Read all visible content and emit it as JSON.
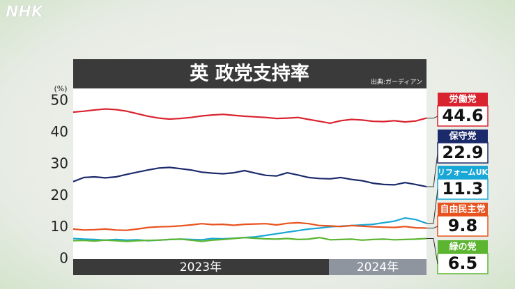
{
  "logo": "NHK",
  "chart_data": {
    "type": "line",
    "title": "英 政党支持率",
    "source": "出典:ガーディアン",
    "y_label": "(%)",
    "period_labels": [
      "2023年",
      "2024年"
    ],
    "ylim": [
      0,
      54
    ],
    "yticks": [
      0,
      10,
      20,
      30,
      40,
      50
    ],
    "grid": false,
    "series": [
      {
        "name": "労働党",
        "color": "#d9232e",
        "values": [
          46.5,
          46.8,
          47.2,
          47.5,
          47.3,
          46.8,
          46.0,
          45.2,
          44.6,
          44.3,
          44.5,
          44.8,
          45.3,
          45.6,
          45.8,
          45.5,
          45.2,
          45.0,
          44.8,
          44.5,
          44.6,
          44.8,
          44.2,
          43.6,
          43.0,
          43.8,
          44.2,
          44.0,
          43.6,
          43.5,
          43.8,
          43.4,
          43.7,
          44.6
        ]
      },
      {
        "name": "保守党",
        "color": "#1b2a6b",
        "values": [
          24.5,
          25.8,
          26.0,
          25.7,
          26.0,
          26.8,
          27.5,
          28.2,
          28.8,
          29.0,
          28.6,
          28.2,
          27.5,
          27.2,
          27.0,
          27.3,
          28.0,
          27.2,
          26.5,
          26.3,
          27.3,
          26.6,
          25.8,
          25.5,
          25.4,
          25.8,
          25.2,
          24.8,
          24.0,
          23.6,
          23.5,
          24.2,
          23.6,
          22.9
        ]
      },
      {
        "name": "リフォームUK",
        "color": "#19a7d6",
        "values": [
          6.5,
          6.3,
          6.2,
          6.0,
          6.2,
          6.0,
          6.1,
          5.8,
          6.0,
          6.2,
          6.3,
          6.2,
          6.1,
          6.5,
          6.4,
          6.6,
          6.8,
          7.0,
          7.5,
          8.0,
          8.5,
          9.0,
          9.5,
          9.8,
          10.2,
          10.4,
          10.6,
          10.8,
          11.0,
          11.5,
          12.0,
          13.0,
          12.5,
          11.3
        ]
      },
      {
        "name": "自由民主党",
        "color": "#e8521e",
        "values": [
          9.5,
          9.2,
          9.3,
          9.5,
          9.2,
          9.1,
          9.5,
          10.0,
          10.2,
          10.3,
          10.5,
          10.8,
          11.2,
          10.9,
          11.0,
          10.7,
          11.0,
          11.1,
          11.2,
          10.8,
          11.3,
          11.5,
          11.2,
          10.6,
          10.5,
          10.3,
          10.6,
          10.4,
          10.2,
          10.1,
          10.0,
          10.3,
          9.9,
          9.8
        ]
      },
      {
        "name": "緑の党",
        "color": "#5cb531",
        "values": [
          5.8,
          5.9,
          5.7,
          6.0,
          5.8,
          5.6,
          5.8,
          5.9,
          6.0,
          6.2,
          6.3,
          6.0,
          5.6,
          6.0,
          6.2,
          6.5,
          6.8,
          6.6,
          6.4,
          6.3,
          6.5,
          6.2,
          6.3,
          6.8,
          6.1,
          6.2,
          6.3,
          6.0,
          6.2,
          6.3,
          6.1,
          6.2,
          6.3,
          6.5
        ]
      }
    ]
  }
}
